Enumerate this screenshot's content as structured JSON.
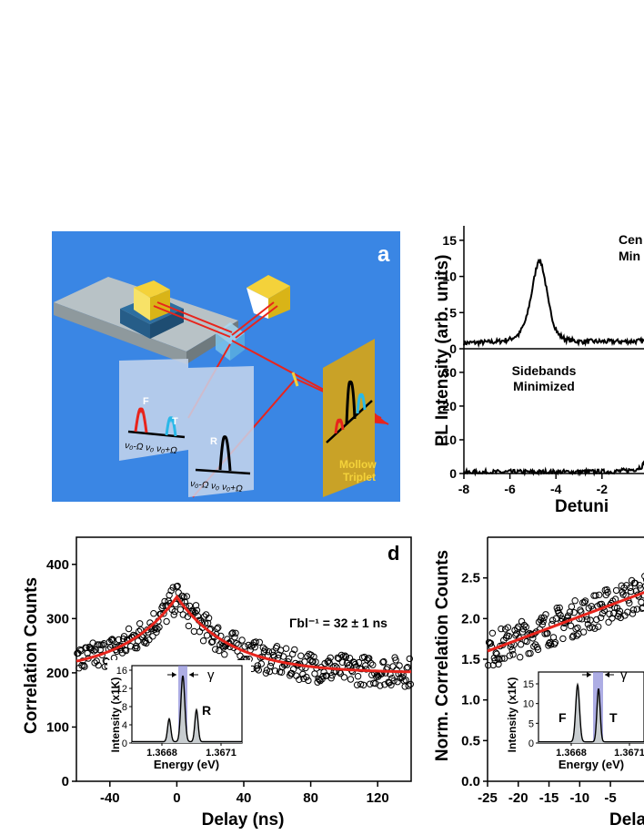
{
  "panel_a": {
    "label": "a",
    "peak_labels": {
      "F": "F",
      "T": "T",
      "R": "R"
    },
    "axis1": "ν₀-Ω  ν₀ ν₀+Ω",
    "axis2": "ν₀-Ω  ν₀ ν₀+Ω",
    "mollow1": "Mollow",
    "mollow2": "Triplet",
    "colors": {
      "background": "#3a86e4",
      "red": "#e8241c",
      "cyan": "#29b8e8",
      "gold": "#c9a227"
    }
  },
  "chart_data": [
    {
      "id": "top-right",
      "type": "line",
      "ylabel": "PL Intensity (arb. units)",
      "xlabel": "Detuni",
      "x_ticks": [
        "-8",
        "-6",
        "-4",
        "-2"
      ],
      "xlim": [
        -8,
        0.3
      ],
      "subplots": [
        {
          "annotation": [
            "Cen",
            "Min"
          ],
          "ylim": [
            0,
            17
          ],
          "y_ticks": [
            "0",
            "5",
            "10",
            "15"
          ],
          "x": [
            -8,
            -7,
            -6.5,
            -6,
            -5.6,
            -5.3,
            -5.1,
            -4.9,
            -4.75,
            -4.6,
            -4.45,
            -4.3,
            -4.1,
            -3.9,
            -3.6,
            -3,
            -2,
            -1,
            0,
            0.3
          ],
          "y": [
            0.8,
            0.9,
            1.0,
            1.3,
            2.0,
            4.0,
            7.0,
            10.5,
            12.5,
            11.5,
            9.0,
            6.0,
            3.5,
            2.0,
            1.3,
            1.0,
            1.0,
            1.0,
            1.1,
            1.3
          ]
        },
        {
          "annotation": [
            "Sidebands",
            "Minimized"
          ],
          "ylim": [
            0,
            37
          ],
          "y_ticks": [
            "0",
            "10",
            "20",
            "30"
          ],
          "x": [
            -8,
            -6,
            -4,
            -2,
            -1.5,
            -1,
            -0.6,
            -0.3,
            -0.1,
            0.1,
            0.3
          ],
          "y": [
            0.3,
            0.4,
            0.4,
            0.5,
            0.6,
            0.8,
            1.2,
            2.0,
            3.5,
            6.0,
            9.0
          ]
        }
      ]
    },
    {
      "id": "d",
      "type": "scatter",
      "label": "d",
      "xlabel": "Delay (ns)",
      "ylabel": "Correlation Counts",
      "xlim": [
        -60,
        140
      ],
      "ylim": [
        0,
        450
      ],
      "x_ticks": [
        "-40",
        "0",
        "40",
        "80",
        "120"
      ],
      "y_ticks": [
        "0",
        "100",
        "200",
        "300",
        "400"
      ],
      "fit": {
        "center": 0,
        "peak": 340,
        "baseline": 200,
        "tau_ns": 32
      },
      "annotation": "Γbl⁻¹ = 32 ± 1 ns",
      "inset": {
        "ylabel": "Intensity (x1K)",
        "xlabel": "Energy (eV)",
        "x_ticks": [
          "1.3668",
          "1.3671"
        ],
        "y_ticks": [
          "0",
          "4",
          "8",
          "12",
          "16"
        ],
        "peak_label": "R",
        "gamma": "γ"
      }
    },
    {
      "id": "e",
      "type": "scatter",
      "xlabel": "Dela",
      "ylabel": "Norm. Correlation Counts",
      "xlim": [
        -25,
        1.5
      ],
      "ylim": [
        0,
        3
      ],
      "x_ticks": [
        "-25",
        "-20",
        "-15",
        "-10",
        "-5"
      ],
      "y_ticks": [
        "0.0",
        "0.5",
        "1.0",
        "1.5",
        "2.0",
        "2.5"
      ],
      "fit": {
        "start": [
          -25,
          1.6
        ],
        "end": [
          1.5,
          2.35
        ]
      },
      "inset": {
        "ylabel": "Intensity (x1K)",
        "xlabel": "Energy (eV)",
        "x_ticks": [
          "1.3668",
          "1.3671"
        ],
        "y_ticks": [
          "0",
          "5",
          "10",
          "15"
        ],
        "peak_labels": [
          "F",
          "T"
        ],
        "gamma": "γ"
      }
    }
  ]
}
